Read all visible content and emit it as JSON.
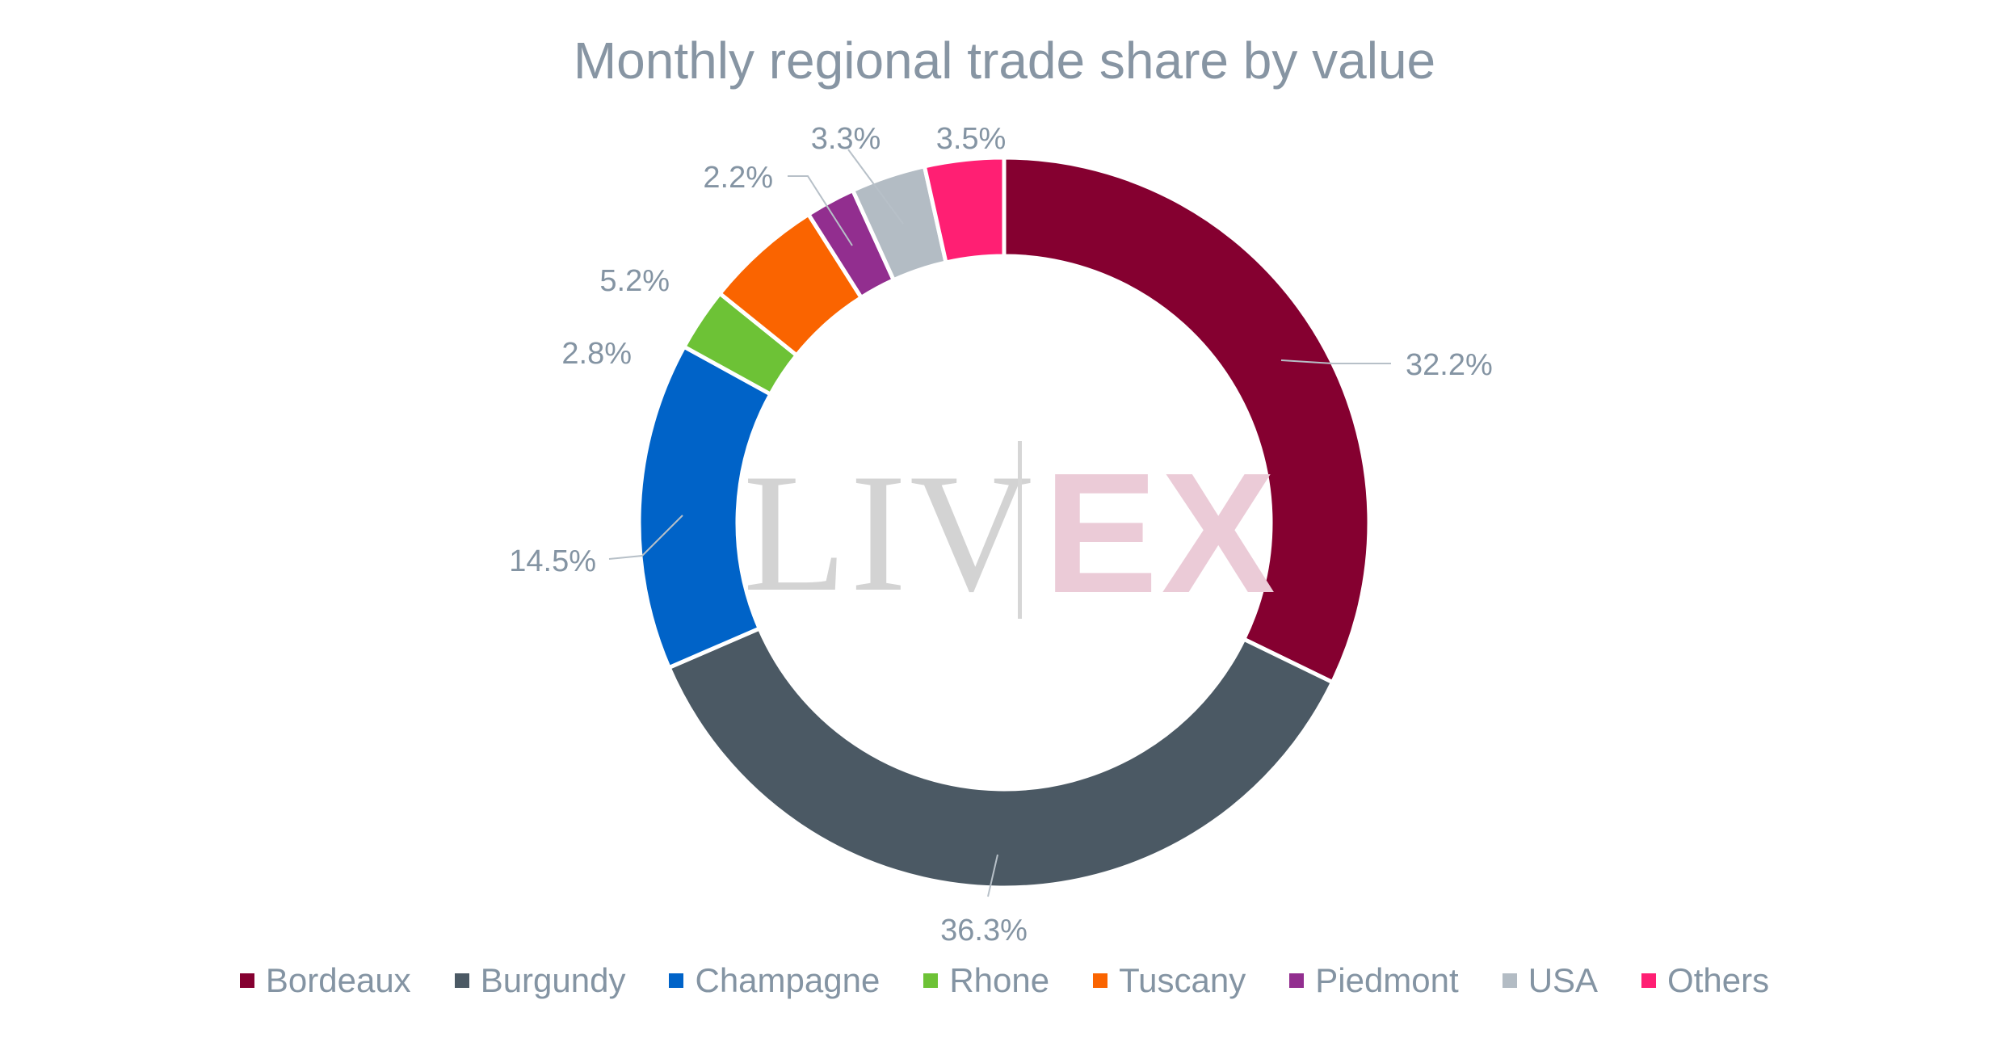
{
  "chart_data": {
    "type": "pie",
    "title": "Monthly regional trade share by value",
    "categories": [
      "Bordeaux",
      "Burgundy",
      "Champagne",
      "Rhone",
      "Tuscany",
      "Piedmont",
      "USA",
      "Others"
    ],
    "values": [
      32.2,
      36.3,
      14.5,
      2.8,
      5.2,
      2.2,
      3.3,
      3.5
    ],
    "labels": [
      "32.2%",
      "36.3%",
      "14.5%",
      "2.8%",
      "5.2%",
      "2.2%",
      "3.3%",
      "3.5%"
    ],
    "colors": [
      "#850030",
      "#4b5964",
      "#0063c8",
      "#6dc236",
      "#fa6400",
      "#922e8f",
      "#b3bcc4",
      "#ff1f73"
    ],
    "donut": true,
    "legend_position": "bottom"
  },
  "watermark": {
    "left_text": "LIV",
    "right_text": "EX"
  }
}
